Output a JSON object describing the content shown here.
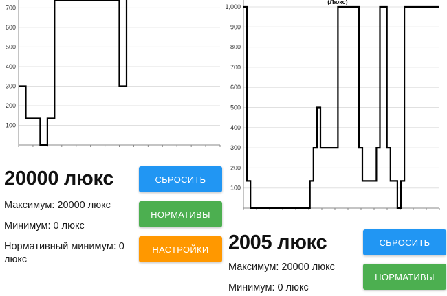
{
  "colors": {
    "reset_button": "#2196f3",
    "norms_button": "#4caf50",
    "settings_button": "#ff9800",
    "line": "#000000",
    "grid": "#e0e0e0"
  },
  "left_panel": {
    "reading": "20000 люкс",
    "max": "Максимум: 20000 люкс",
    "min": "Минимум: 0 люкс",
    "norm_min": "Нормативный минимум: 0 люкс",
    "buttons": {
      "reset": "СБРОСИТЬ",
      "norms": "НОРМАТИВЫ",
      "settings": "НАСТРОЙКИ"
    },
    "chart_data": {
      "type": "line",
      "y_range_visible": [
        0,
        740
      ],
      "y_ticks": [
        "100",
        "200",
        "300",
        "400",
        "500",
        "600",
        "700"
      ],
      "x_range": [
        0,
        28
      ],
      "points": [
        [
          0,
          300
        ],
        [
          1,
          300
        ],
        [
          1,
          135
        ],
        [
          3,
          135
        ],
        [
          3,
          0
        ],
        [
          4,
          0
        ],
        [
          4,
          135
        ],
        [
          5,
          135
        ],
        [
          5,
          740
        ],
        [
          14,
          740
        ],
        [
          14,
          300
        ],
        [
          15,
          300
        ],
        [
          15,
          740
        ]
      ],
      "grid": true
    }
  },
  "right_panel": {
    "chart_title": "(Люкс)",
    "reading": "2005 люкс",
    "max": "Максимум: 20000 люкс",
    "min": "Минимум: 0 люкс",
    "buttons": {
      "reset": "СБРОСИТЬ",
      "norms": "НОРМАТИВЫ"
    },
    "chart_data": {
      "type": "line",
      "y_range": [
        0,
        1000
      ],
      "y_ticks": [
        "100",
        "200",
        "300",
        "400",
        "500",
        "600",
        "700",
        "800",
        "900",
        "1,000"
      ],
      "x_range": [
        0,
        28
      ],
      "points": [
        [
          0,
          1000
        ],
        [
          0.5,
          1000
        ],
        [
          0.5,
          135
        ],
        [
          1,
          135
        ],
        [
          1,
          0
        ],
        [
          9.5,
          0
        ],
        [
          9.5,
          135
        ],
        [
          10,
          135
        ],
        [
          10,
          300
        ],
        [
          10.5,
          300
        ],
        [
          10.5,
          500
        ],
        [
          11,
          500
        ],
        [
          11,
          300
        ],
        [
          13.5,
          300
        ],
        [
          13.5,
          1000
        ],
        [
          16.5,
          1000
        ],
        [
          16.5,
          300
        ],
        [
          17,
          300
        ],
        [
          17,
          135
        ],
        [
          19,
          135
        ],
        [
          19,
          300
        ],
        [
          19.5,
          300
        ],
        [
          19.5,
          1000
        ],
        [
          20.5,
          1000
        ],
        [
          20.5,
          300
        ],
        [
          21,
          300
        ],
        [
          21,
          135
        ],
        [
          22,
          135
        ],
        [
          22,
          0
        ],
        [
          22.5,
          0
        ],
        [
          22.5,
          135
        ],
        [
          23,
          135
        ],
        [
          23,
          1000
        ],
        [
          28,
          1000
        ]
      ],
      "grid": true
    }
  }
}
